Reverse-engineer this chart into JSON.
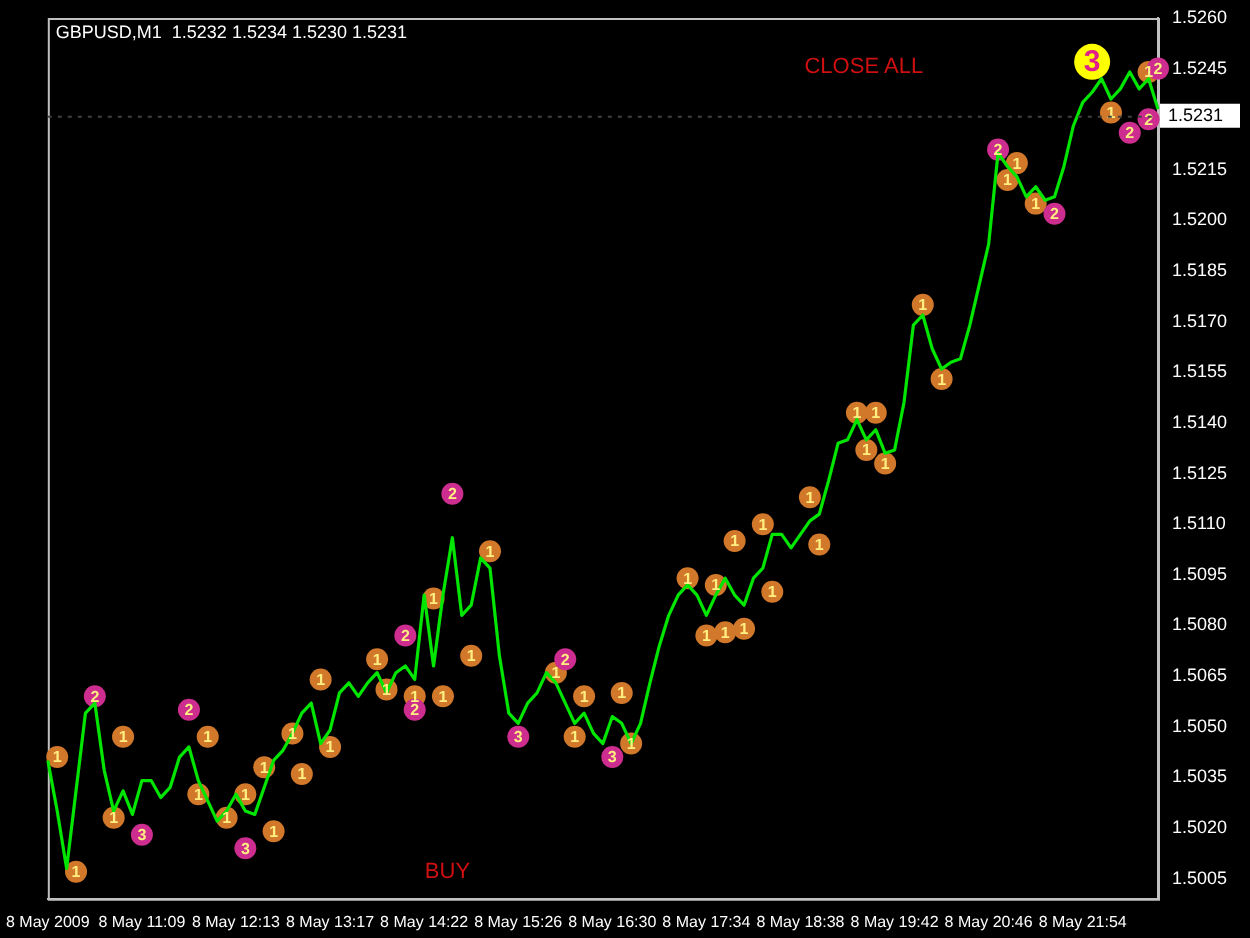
{
  "chart_data": {
    "type": "line",
    "title": "GBPUSD,M1  1.5232 1.5234 1.5230 1.5231",
    "categories": [
      "8 May 2009",
      null,
      null,
      null,
      null,
      null,
      null,
      null,
      null,
      null,
      "8 May 11:09",
      null,
      null,
      null,
      null,
      null,
      null,
      null,
      null,
      null,
      "8 May 12:13",
      null,
      null,
      null,
      null,
      null,
      null,
      null,
      null,
      null,
      "8 May 13:17",
      null,
      null,
      null,
      null,
      null,
      null,
      null,
      null,
      null,
      "8 May 14:22",
      null,
      null,
      null,
      null,
      null,
      null,
      null,
      null,
      null,
      "8 May 15:26",
      null,
      null,
      null,
      null,
      null,
      null,
      null,
      null,
      null,
      "8 May 16:30",
      null,
      null,
      null,
      null,
      null,
      null,
      null,
      null,
      null,
      "8 May 17:34",
      null,
      null,
      null,
      null,
      null,
      null,
      null,
      null,
      null,
      "8 May 18:38",
      null,
      null,
      null,
      null,
      null,
      null,
      null,
      null,
      null,
      "8 May 19:42",
      null,
      null,
      null,
      null,
      null,
      null,
      null,
      null,
      null,
      "8 May 20:46",
      null,
      null,
      null,
      null,
      null,
      null,
      null,
      null,
      null,
      "8 May 21:54",
      null,
      null,
      null,
      null,
      null,
      null,
      null,
      null
    ],
    "series": [
      {
        "color": "#00e600",
        "marker": "none",
        "values": [
          1.504,
          1.5025,
          1.5008,
          1.5031,
          1.5054,
          1.5057,
          1.5037,
          1.5025,
          1.5031,
          1.5024,
          1.5034,
          1.5034,
          1.5029,
          1.5032,
          1.5041,
          1.5044,
          1.5034,
          1.5028,
          1.5022,
          1.5025,
          1.503,
          1.5025,
          1.5024,
          1.5032,
          1.504,
          1.5043,
          1.5048,
          1.5054,
          1.5057,
          1.5045,
          1.5049,
          1.506,
          1.5063,
          1.5059,
          1.5063,
          1.5066,
          1.506,
          1.5066,
          1.5068,
          1.5064,
          1.5089,
          1.5068,
          1.5089,
          1.5106,
          1.5083,
          1.5086,
          1.51,
          1.5097,
          1.5071,
          1.5054,
          1.5051,
          1.5057,
          1.506,
          1.5066,
          1.5063,
          1.5057,
          1.5051,
          1.5054,
          1.5048,
          1.5045,
          1.5053,
          1.5051,
          1.5045,
          1.5051,
          1.5063,
          1.5074,
          1.5083,
          1.5089,
          1.5092,
          1.5089,
          1.5083,
          1.5089,
          1.5094,
          1.5089,
          1.5086,
          1.5094,
          1.5097,
          1.5107,
          1.5107,
          1.5103,
          1.5107,
          1.5111,
          1.5113,
          1.5123,
          1.5134,
          1.5135,
          1.5141,
          1.5135,
          1.5138,
          1.5131,
          1.5132,
          1.5146,
          1.5169,
          1.5172,
          1.5162,
          1.5156,
          1.5158,
          1.5159,
          1.5169,
          1.5181,
          1.5193,
          1.522,
          1.5216,
          1.5213,
          1.5207,
          1.521,
          1.5206,
          1.5207,
          1.5216,
          1.5228,
          1.5235,
          1.5238,
          1.5242,
          1.5236,
          1.5239,
          1.5244,
          1.5239,
          1.5242,
          1.5233
        ]
      },
      {
        "type": "scatter",
        "name": "1",
        "color": "#d2782a",
        "marker": "circle",
        "values": [
          null,
          1.5041,
          null,
          1.5007,
          null,
          null,
          null,
          1.5023,
          1.5047,
          null,
          null,
          null,
          null,
          null,
          null,
          null,
          1.503,
          1.5047,
          null,
          1.5023,
          null,
          1.503,
          null,
          1.5038,
          1.5019,
          null,
          1.5048,
          1.5036,
          null,
          1.5064,
          1.5044,
          null,
          null,
          null,
          null,
          1.507,
          1.5061,
          null,
          null,
          1.5059,
          null,
          1.5088,
          1.5059,
          null,
          null,
          1.5071,
          null,
          1.5102,
          null,
          null,
          null,
          null,
          null,
          null,
          1.5066,
          null,
          1.5047,
          1.5059,
          null,
          null,
          null,
          1.506,
          1.5045,
          null,
          null,
          null,
          null,
          null,
          1.5094,
          null,
          1.5077,
          1.5092,
          1.5078,
          1.5105,
          1.5079,
          null,
          1.511,
          1.509,
          null,
          null,
          null,
          1.5118,
          1.5104,
          null,
          null,
          null,
          1.5143,
          1.5132,
          1.5143,
          1.5128,
          null,
          null,
          null,
          1.5175,
          null,
          1.5153,
          null,
          null,
          null,
          null,
          null,
          null,
          1.5212,
          1.5217,
          null,
          1.5205,
          null,
          null,
          null,
          null,
          null,
          null,
          null,
          1.5232,
          null,
          null,
          null,
          1.5244,
          null
        ]
      },
      {
        "type": "scatter",
        "name": "2",
        "color": "#cc2d8f",
        "marker": "circle",
        "values": [
          null,
          null,
          null,
          null,
          null,
          1.5059,
          null,
          null,
          null,
          null,
          null,
          null,
          null,
          null,
          null,
          1.5055,
          null,
          null,
          null,
          null,
          null,
          null,
          null,
          null,
          null,
          null,
          null,
          null,
          null,
          null,
          null,
          null,
          null,
          null,
          null,
          null,
          null,
          null,
          1.5077,
          1.5055,
          null,
          null,
          null,
          1.5119,
          null,
          null,
          null,
          null,
          null,
          null,
          null,
          null,
          null,
          null,
          null,
          1.507,
          null,
          null,
          null,
          null,
          null,
          null,
          null,
          null,
          null,
          null,
          null,
          null,
          null,
          null,
          null,
          null,
          null,
          null,
          null,
          null,
          null,
          null,
          null,
          null,
          null,
          null,
          null,
          null,
          null,
          null,
          null,
          null,
          null,
          null,
          null,
          null,
          null,
          null,
          null,
          null,
          null,
          null,
          null,
          null,
          null,
          1.5221,
          null,
          null,
          null,
          null,
          null,
          1.5202,
          null,
          null,
          null,
          null,
          null,
          null,
          null,
          1.5226,
          null,
          1.523,
          1.5245
        ]
      },
      {
        "type": "scatter",
        "name": "3",
        "color": "#cc2d8f",
        "marker": "circle",
        "values": [
          null,
          null,
          null,
          null,
          null,
          null,
          null,
          null,
          null,
          null,
          1.5018,
          null,
          null,
          null,
          null,
          null,
          null,
          null,
          null,
          null,
          null,
          1.5014,
          null,
          null,
          null,
          null,
          null,
          null,
          null,
          null,
          null,
          null,
          null,
          null,
          null,
          null,
          null,
          null,
          null,
          null,
          null,
          null,
          null,
          null,
          null,
          null,
          null,
          null,
          null,
          null,
          1.5047,
          null,
          null,
          null,
          null,
          null,
          null,
          null,
          null,
          null,
          1.5041,
          null,
          null,
          null,
          null,
          null,
          null,
          null,
          null,
          null,
          null,
          null,
          null,
          null,
          null,
          null,
          null,
          null,
          null,
          null,
          null,
          null,
          null,
          null,
          null,
          null,
          null,
          null,
          null,
          null,
          null,
          null,
          null,
          null,
          null,
          null,
          null,
          null,
          null,
          null,
          null,
          null,
          null,
          null,
          null,
          null,
          null,
          null,
          null,
          null,
          null,
          null,
          null,
          null,
          null,
          null,
          null,
          null,
          null
        ]
      },
      {
        "type": "scatter",
        "name": "3",
        "color": "#ffff00",
        "marker": "circle",
        "values": [
          null,
          null,
          null,
          null,
          null,
          null,
          null,
          null,
          null,
          null,
          null,
          null,
          null,
          null,
          null,
          null,
          null,
          null,
          null,
          null,
          null,
          null,
          null,
          null,
          null,
          null,
          null,
          null,
          null,
          null,
          null,
          null,
          null,
          null,
          null,
          null,
          null,
          null,
          null,
          null,
          null,
          null,
          null,
          null,
          null,
          null,
          null,
          null,
          null,
          null,
          null,
          null,
          null,
          null,
          null,
          null,
          null,
          null,
          null,
          null,
          null,
          null,
          null,
          null,
          null,
          null,
          null,
          null,
          null,
          null,
          null,
          null,
          null,
          null,
          null,
          null,
          null,
          null,
          null,
          null,
          null,
          null,
          null,
          null,
          null,
          null,
          null,
          null,
          null,
          null,
          null,
          null,
          null,
          null,
          null,
          null,
          null,
          null,
          null,
          null,
          null,
          null,
          null,
          null,
          null,
          null,
          null,
          null,
          null,
          null,
          null,
          1.5247,
          null,
          null,
          null,
          null,
          null,
          null,
          null
        ]
      }
    ],
    "ylim": [
      1.4999,
      1.526
    ],
    "yticks": [
      1.5005,
      {
        "value": 1.502,
        "label": "1.5020"
      },
      1.5035,
      {
        "value": 1.505,
        "label": "1.5050"
      },
      1.5065,
      {
        "value": 1.508,
        "label": "1.5080"
      },
      1.5095,
      {
        "value": 1.511,
        "label": "1.5110"
      },
      1.5125,
      {
        "value": 1.514,
        "label": "1.5140"
      },
      1.5155,
      {
        "value": 1.517,
        "label": "1.5170"
      },
      1.5185,
      {
        "value": 1.52,
        "label": "1.5200"
      },
      1.5215,
      1.5245,
      {
        "value": 1.526,
        "label": "1.5260"
      }
    ],
    "ref_lines": [
      {
        "axis": "y",
        "value": 1.5231,
        "label": "1.5231",
        "color": "#404040",
        "line_style": "dotted"
      }
    ],
    "annotations": [
      "CLOSE ALL",
      "BUY"
    ],
    "grid": false,
    "legend": false
  }
}
